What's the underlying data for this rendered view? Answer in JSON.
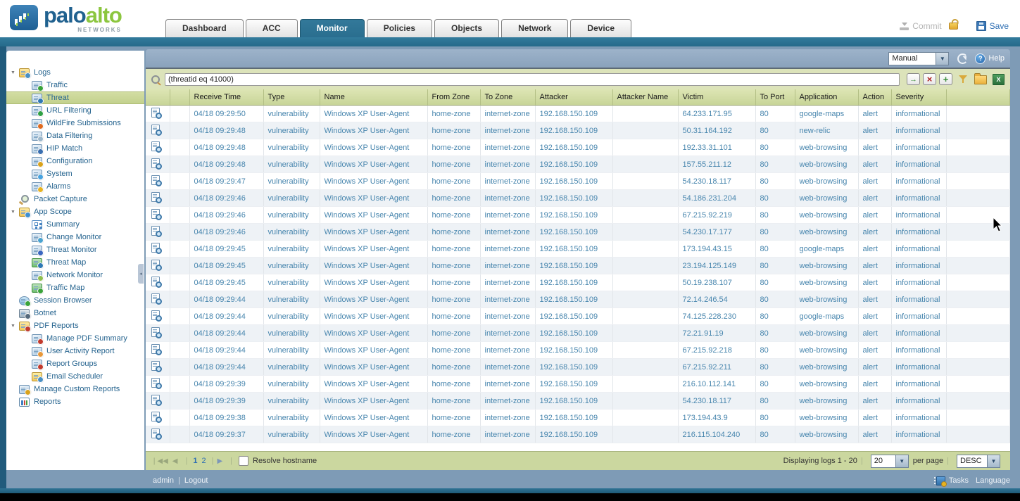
{
  "header": {
    "logo": {
      "palo": "palo",
      "alto": "alto",
      "networks": "NETWORKS"
    },
    "tabs": [
      {
        "label": "Dashboard",
        "active": false
      },
      {
        "label": "ACC",
        "active": false
      },
      {
        "label": "Monitor",
        "active": true
      },
      {
        "label": "Policies",
        "active": false
      },
      {
        "label": "Objects",
        "active": false
      },
      {
        "label": "Network",
        "active": false
      },
      {
        "label": "Device",
        "active": false
      }
    ],
    "commit_label": "Commit",
    "save_label": "Save"
  },
  "toolbar": {
    "refresh_mode": "Manual",
    "help_label": "Help"
  },
  "filter": {
    "value": "(threatid eq 41000)",
    "buttons": [
      {
        "name": "apply-filter-button",
        "cls": "fbtn apply",
        "glyph": "→"
      },
      {
        "name": "clear-filter-button",
        "cls": "fbtn clear",
        "glyph": "×"
      },
      {
        "name": "add-filter-button",
        "cls": "fbtn add",
        "glyph": "+"
      },
      {
        "name": "save-filter-button",
        "cls": "fsave",
        "glyph": ""
      },
      {
        "name": "load-filter-button",
        "cls": "folder",
        "glyph": ""
      },
      {
        "name": "export-to-csv-button",
        "cls": "xlsx",
        "glyph": "X"
      }
    ]
  },
  "sidebar": {
    "items": [
      {
        "label": "Logs",
        "depth": 0,
        "expander": true,
        "icon": "logs-icon"
      },
      {
        "label": "Traffic",
        "depth": 1,
        "icon": "traffic-icon"
      },
      {
        "label": "Threat",
        "depth": 1,
        "selected": true,
        "icon": "threat-icon"
      },
      {
        "label": "URL Filtering",
        "depth": 1,
        "icon": "url-filtering-icon"
      },
      {
        "label": "WildFire Submissions",
        "depth": 1,
        "icon": "wildfire-icon"
      },
      {
        "label": "Data Filtering",
        "depth": 1,
        "icon": "data-filtering-icon"
      },
      {
        "label": "HIP Match",
        "depth": 1,
        "icon": "hip-match-icon"
      },
      {
        "label": "Configuration",
        "depth": 1,
        "icon": "configuration-icon"
      },
      {
        "label": "System",
        "depth": 1,
        "icon": "system-icon"
      },
      {
        "label": "Alarms",
        "depth": 1,
        "icon": "alarms-icon"
      },
      {
        "label": "Packet Capture",
        "depth": 0,
        "icon": "packet-capture-icon"
      },
      {
        "label": "App Scope",
        "depth": 0,
        "expander": true,
        "icon": "app-scope-icon"
      },
      {
        "label": "Summary",
        "depth": 1,
        "icon": "summary-icon"
      },
      {
        "label": "Change Monitor",
        "depth": 1,
        "icon": "change-monitor-icon"
      },
      {
        "label": "Threat Monitor",
        "depth": 1,
        "icon": "threat-monitor-icon"
      },
      {
        "label": "Threat Map",
        "depth": 1,
        "icon": "threat-map-icon"
      },
      {
        "label": "Network Monitor",
        "depth": 1,
        "icon": "network-monitor-icon"
      },
      {
        "label": "Traffic Map",
        "depth": 1,
        "icon": "traffic-map-icon"
      },
      {
        "label": "Session Browser",
        "depth": 0,
        "icon": "session-browser-icon"
      },
      {
        "label": "Botnet",
        "depth": 0,
        "icon": "botnet-icon"
      },
      {
        "label": "PDF Reports",
        "depth": 0,
        "expander": true,
        "icon": "pdf-reports-icon"
      },
      {
        "label": "Manage PDF Summary",
        "depth": 1,
        "icon": "manage-pdf-summary-icon"
      },
      {
        "label": "User Activity Report",
        "depth": 1,
        "icon": "user-activity-report-icon"
      },
      {
        "label": "Report Groups",
        "depth": 1,
        "icon": "report-groups-icon"
      },
      {
        "label": "Email Scheduler",
        "depth": 1,
        "icon": "email-scheduler-icon"
      },
      {
        "label": "Manage Custom Reports",
        "depth": 0,
        "icon": "manage-custom-reports-icon"
      },
      {
        "label": "Reports",
        "depth": 0,
        "icon": "reports-icon"
      }
    ]
  },
  "table": {
    "columns": [
      "",
      "",
      "Receive Time",
      "Type",
      "Name",
      "From Zone",
      "To Zone",
      "Attacker",
      "Attacker Name",
      "Victim",
      "To Port",
      "Application",
      "Action",
      "Severity",
      ""
    ],
    "rows": [
      {
        "receive_time": "04/18 09:29:50",
        "type": "vulnerability",
        "name": "Windows XP User-Agent",
        "from_zone": "home-zone",
        "to_zone": "internet-zone",
        "attacker": "192.168.150.109",
        "attacker_name": "",
        "victim": "64.233.171.95",
        "to_port": "80",
        "application": "google-maps",
        "action": "alert",
        "severity": "informational"
      },
      {
        "receive_time": "04/18 09:29:48",
        "type": "vulnerability",
        "name": "Windows XP User-Agent",
        "from_zone": "home-zone",
        "to_zone": "internet-zone",
        "attacker": "192.168.150.109",
        "attacker_name": "",
        "victim": "50.31.164.192",
        "to_port": "80",
        "application": "new-relic",
        "action": "alert",
        "severity": "informational"
      },
      {
        "receive_time": "04/18 09:29:48",
        "type": "vulnerability",
        "name": "Windows XP User-Agent",
        "from_zone": "home-zone",
        "to_zone": "internet-zone",
        "attacker": "192.168.150.109",
        "attacker_name": "",
        "victim": "192.33.31.101",
        "to_port": "80",
        "application": "web-browsing",
        "action": "alert",
        "severity": "informational"
      },
      {
        "receive_time": "04/18 09:29:48",
        "type": "vulnerability",
        "name": "Windows XP User-Agent",
        "from_zone": "home-zone",
        "to_zone": "internet-zone",
        "attacker": "192.168.150.109",
        "attacker_name": "",
        "victim": "157.55.211.12",
        "to_port": "80",
        "application": "web-browsing",
        "action": "alert",
        "severity": "informational"
      },
      {
        "receive_time": "04/18 09:29:47",
        "type": "vulnerability",
        "name": "Windows XP User-Agent",
        "from_zone": "home-zone",
        "to_zone": "internet-zone",
        "attacker": "192.168.150.109",
        "attacker_name": "",
        "victim": "54.230.18.117",
        "to_port": "80",
        "application": "web-browsing",
        "action": "alert",
        "severity": "informational"
      },
      {
        "receive_time": "04/18 09:29:46",
        "type": "vulnerability",
        "name": "Windows XP User-Agent",
        "from_zone": "home-zone",
        "to_zone": "internet-zone",
        "attacker": "192.168.150.109",
        "attacker_name": "",
        "victim": "54.186.231.204",
        "to_port": "80",
        "application": "web-browsing",
        "action": "alert",
        "severity": "informational"
      },
      {
        "receive_time": "04/18 09:29:46",
        "type": "vulnerability",
        "name": "Windows XP User-Agent",
        "from_zone": "home-zone",
        "to_zone": "internet-zone",
        "attacker": "192.168.150.109",
        "attacker_name": "",
        "victim": "67.215.92.219",
        "to_port": "80",
        "application": "web-browsing",
        "action": "alert",
        "severity": "informational"
      },
      {
        "receive_time": "04/18 09:29:46",
        "type": "vulnerability",
        "name": "Windows XP User-Agent",
        "from_zone": "home-zone",
        "to_zone": "internet-zone",
        "attacker": "192.168.150.109",
        "attacker_name": "",
        "victim": "54.230.17.177",
        "to_port": "80",
        "application": "web-browsing",
        "action": "alert",
        "severity": "informational"
      },
      {
        "receive_time": "04/18 09:29:45",
        "type": "vulnerability",
        "name": "Windows XP User-Agent",
        "from_zone": "home-zone",
        "to_zone": "internet-zone",
        "attacker": "192.168.150.109",
        "attacker_name": "",
        "victim": "173.194.43.15",
        "to_port": "80",
        "application": "google-maps",
        "action": "alert",
        "severity": "informational"
      },
      {
        "receive_time": "04/18 09:29:45",
        "type": "vulnerability",
        "name": "Windows XP User-Agent",
        "from_zone": "home-zone",
        "to_zone": "internet-zone",
        "attacker": "192.168.150.109",
        "attacker_name": "",
        "victim": "23.194.125.149",
        "to_port": "80",
        "application": "web-browsing",
        "action": "alert",
        "severity": "informational"
      },
      {
        "receive_time": "04/18 09:29:45",
        "type": "vulnerability",
        "name": "Windows XP User-Agent",
        "from_zone": "home-zone",
        "to_zone": "internet-zone",
        "attacker": "192.168.150.109",
        "attacker_name": "",
        "victim": "50.19.238.107",
        "to_port": "80",
        "application": "web-browsing",
        "action": "alert",
        "severity": "informational"
      },
      {
        "receive_time": "04/18 09:29:44",
        "type": "vulnerability",
        "name": "Windows XP User-Agent",
        "from_zone": "home-zone",
        "to_zone": "internet-zone",
        "attacker": "192.168.150.109",
        "attacker_name": "",
        "victim": "72.14.246.54",
        "to_port": "80",
        "application": "web-browsing",
        "action": "alert",
        "severity": "informational"
      },
      {
        "receive_time": "04/18 09:29:44",
        "type": "vulnerability",
        "name": "Windows XP User-Agent",
        "from_zone": "home-zone",
        "to_zone": "internet-zone",
        "attacker": "192.168.150.109",
        "attacker_name": "",
        "victim": "74.125.228.230",
        "to_port": "80",
        "application": "google-maps",
        "action": "alert",
        "severity": "informational"
      },
      {
        "receive_time": "04/18 09:29:44",
        "type": "vulnerability",
        "name": "Windows XP User-Agent",
        "from_zone": "home-zone",
        "to_zone": "internet-zone",
        "attacker": "192.168.150.109",
        "attacker_name": "",
        "victim": "72.21.91.19",
        "to_port": "80",
        "application": "web-browsing",
        "action": "alert",
        "severity": "informational"
      },
      {
        "receive_time": "04/18 09:29:44",
        "type": "vulnerability",
        "name": "Windows XP User-Agent",
        "from_zone": "home-zone",
        "to_zone": "internet-zone",
        "attacker": "192.168.150.109",
        "attacker_name": "",
        "victim": "67.215.92.218",
        "to_port": "80",
        "application": "web-browsing",
        "action": "alert",
        "severity": "informational"
      },
      {
        "receive_time": "04/18 09:29:44",
        "type": "vulnerability",
        "name": "Windows XP User-Agent",
        "from_zone": "home-zone",
        "to_zone": "internet-zone",
        "attacker": "192.168.150.109",
        "attacker_name": "",
        "victim": "67.215.92.211",
        "to_port": "80",
        "application": "web-browsing",
        "action": "alert",
        "severity": "informational"
      },
      {
        "receive_time": "04/18 09:29:39",
        "type": "vulnerability",
        "name": "Windows XP User-Agent",
        "from_zone": "home-zone",
        "to_zone": "internet-zone",
        "attacker": "192.168.150.109",
        "attacker_name": "",
        "victim": "216.10.112.141",
        "to_port": "80",
        "application": "web-browsing",
        "action": "alert",
        "severity": "informational"
      },
      {
        "receive_time": "04/18 09:29:39",
        "type": "vulnerability",
        "name": "Windows XP User-Agent",
        "from_zone": "home-zone",
        "to_zone": "internet-zone",
        "attacker": "192.168.150.109",
        "attacker_name": "",
        "victim": "54.230.18.117",
        "to_port": "80",
        "application": "web-browsing",
        "action": "alert",
        "severity": "informational"
      },
      {
        "receive_time": "04/18 09:29:38",
        "type": "vulnerability",
        "name": "Windows XP User-Agent",
        "from_zone": "home-zone",
        "to_zone": "internet-zone",
        "attacker": "192.168.150.109",
        "attacker_name": "",
        "victim": "173.194.43.9",
        "to_port": "80",
        "application": "web-browsing",
        "action": "alert",
        "severity": "informational"
      },
      {
        "receive_time": "04/18 09:29:37",
        "type": "vulnerability",
        "name": "Windows XP User-Agent",
        "from_zone": "home-zone",
        "to_zone": "internet-zone",
        "attacker": "192.168.150.109",
        "attacker_name": "",
        "victim": "216.115.104.240",
        "to_port": "80",
        "application": "web-browsing",
        "action": "alert",
        "severity": "informational"
      }
    ]
  },
  "pager": {
    "pages": [
      "1",
      "2"
    ],
    "resolve_label": "Resolve hostname",
    "displaying": "Displaying logs 1 - 20",
    "per_page": "20",
    "per_page_label": "per page",
    "sort": "DESC"
  },
  "footer": {
    "user": "admin",
    "logout": "Logout",
    "tasks": "Tasks",
    "language": "Language"
  },
  "colors": {
    "brand_blue": "#20618f",
    "brand_green": "#8cc63f",
    "active_tab": "#2d7492",
    "steel_blue_bg": "#7e9bb6",
    "olive_header": "#ccd8a0",
    "selected_tree_item": "#c8d494",
    "link_text": "#4886ae"
  }
}
